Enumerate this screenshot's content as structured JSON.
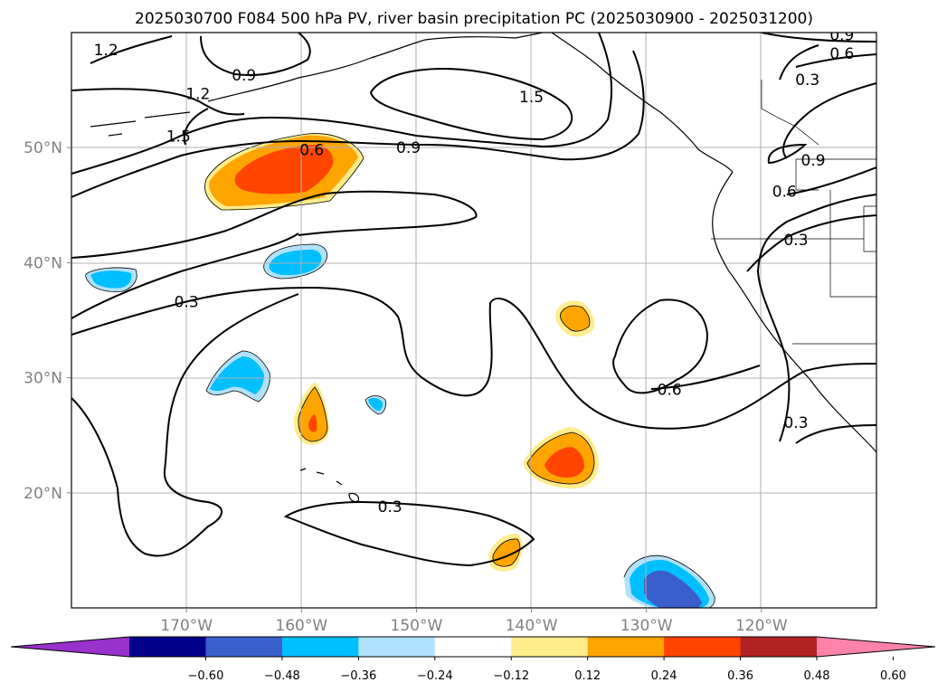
{
  "chart_data": {
    "type": "contour-map",
    "title": "2025030700 F084 500 hPa PV, river basin precipitation PC (2025030900 - 2025031200)",
    "grid": true,
    "lon_range": [
      -180,
      -110
    ],
    "lat_range": [
      10,
      60
    ],
    "x_ticks": [
      {
        "lon": -170,
        "label": "170°W"
      },
      {
        "lon": -160,
        "label": "160°W"
      },
      {
        "lon": -150,
        "label": "150°W"
      },
      {
        "lon": -140,
        "label": "140°W"
      },
      {
        "lon": -130,
        "label": "130°W"
      },
      {
        "lon": -120,
        "label": "120°W"
      }
    ],
    "y_ticks": [
      {
        "lat": 20,
        "label": "20°N"
      },
      {
        "lat": 30,
        "label": "30°N"
      },
      {
        "lat": 40,
        "label": "40°N"
      },
      {
        "lat": 50,
        "label": "50°N"
      }
    ],
    "pv_contour_levels": [
      "0.3",
      "0.6",
      "0.9",
      "1.2",
      "1.5"
    ],
    "contour_labels": [
      {
        "text": "1.2",
        "lon": -177.0,
        "lat": 58.5
      },
      {
        "text": "0.9",
        "lon": -165.0,
        "lat": 56.3
      },
      {
        "text": "1.2",
        "lon": -169.0,
        "lat": 54.7
      },
      {
        "text": "1.5",
        "lon": -170.7,
        "lat": 51.0
      },
      {
        "text": "1.5",
        "lon": -140.0,
        "lat": 54.4
      },
      {
        "text": "0.9",
        "lon": -150.7,
        "lat": 50.0
      },
      {
        "text": "0.6",
        "lon": -159.1,
        "lat": 49.8
      },
      {
        "text": "0.3",
        "lon": -170.0,
        "lat": 36.6
      },
      {
        "text": "0.6",
        "lon": -128.0,
        "lat": 29.0
      },
      {
        "text": "0.3",
        "lon": -152.3,
        "lat": 18.8
      },
      {
        "text": "0.3",
        "lon": -117.0,
        "lat": 26.1
      },
      {
        "text": "0.9",
        "lon": -113.0,
        "lat": 59.8
      },
      {
        "text": "0.6",
        "lon": -113.0,
        "lat": 58.2
      },
      {
        "text": "0.3",
        "lon": -116.0,
        "lat": 55.9
      },
      {
        "text": "0.6",
        "lon": -118.0,
        "lat": 46.2
      },
      {
        "text": "0.3",
        "lon": -117.0,
        "lat": 42.0
      },
      {
        "text": "0.9",
        "lon": -115.5,
        "lat": 48.9
      }
    ],
    "precip_pc_levels": [
      -0.6,
      -0.48,
      -0.36,
      -0.24,
      -0.12,
      0.12,
      0.24,
      0.36,
      0.48,
      0.6
    ],
    "colorbar": {
      "extend": "both",
      "colors": [
        "#9932cc",
        "#00008b",
        "#3a5fcd",
        "#00bfff",
        "#b0e2ff",
        "#ffffff",
        "#ffec8b",
        "#ffa500",
        "#ff4500",
        "#b22222",
        "#ff82ab"
      ],
      "tick_labels": [
        "−0.60",
        "−0.48",
        "−0.36",
        "−0.24",
        "−0.12",
        "0.12",
        "0.24",
        "0.36",
        "0.48",
        "0.60"
      ]
    }
  }
}
